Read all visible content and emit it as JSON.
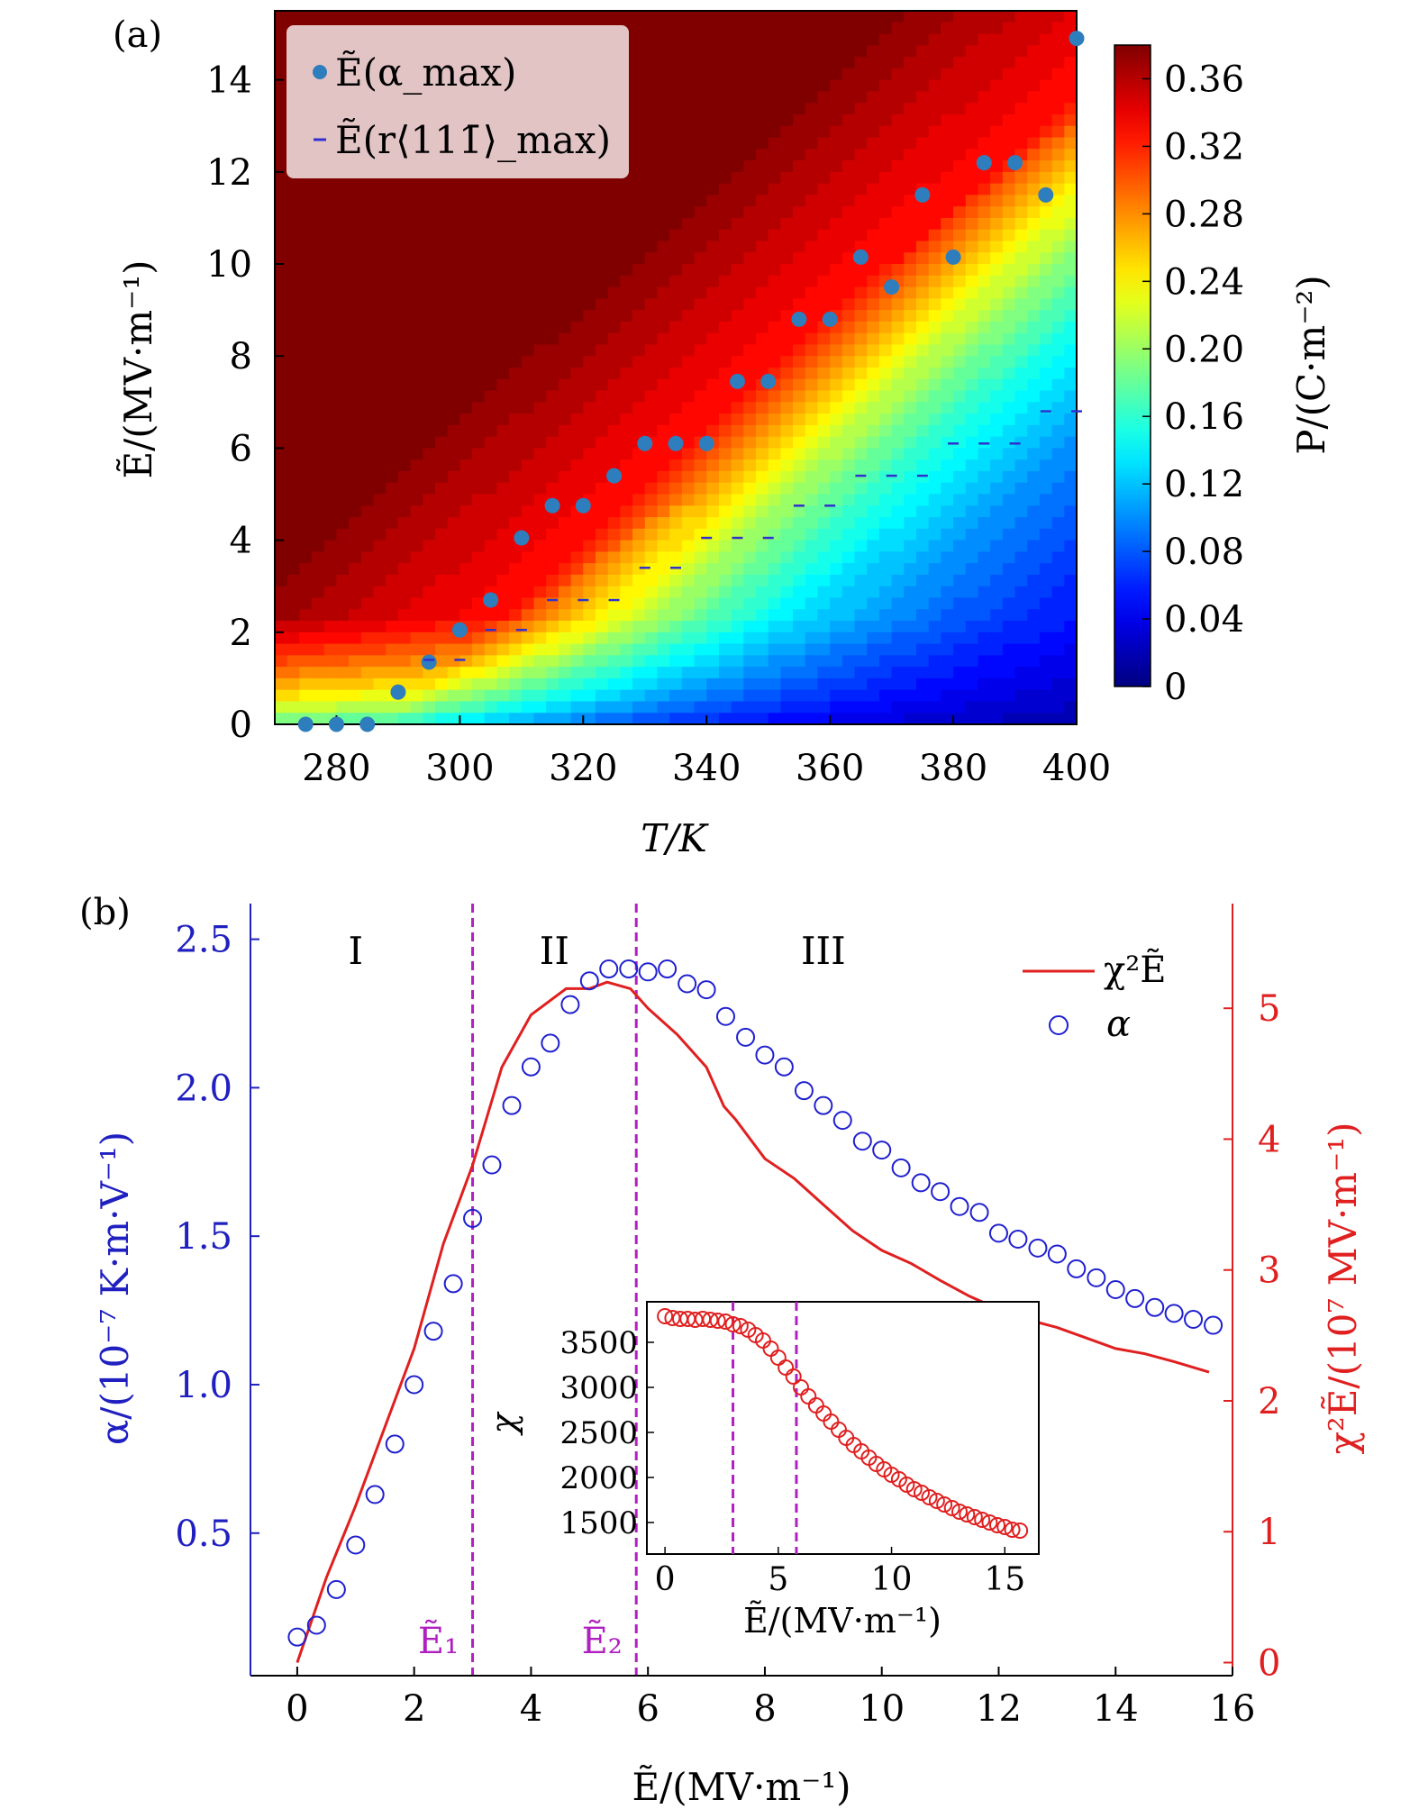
{
  "chart_data": [
    {
      "panel": "(a)",
      "type": "heatmap",
      "xlabel": "T/K",
      "ylabel": "Ẽ/(MV·m⁻¹)",
      "colorbar_label": "P/(C·m⁻²)",
      "xlim": [
        270,
        400
      ],
      "ylim": [
        0,
        15.5
      ],
      "xticks": [
        280,
        300,
        320,
        340,
        360,
        380,
        400
      ],
      "yticks": [
        0,
        2,
        4,
        6,
        8,
        10,
        12,
        14
      ],
      "colorbar_ticks": [
        "0",
        "0.04",
        "0.08",
        "0.12",
        "0.16",
        "0.20",
        "0.24",
        "0.28",
        "0.32",
        "0.36"
      ],
      "colorbar_range": [
        0,
        0.38
      ],
      "legend": [
        "Ẽ(α_max)",
        "Ẽ(r⟨111̄⟩_max)"
      ],
      "legend_position": "top-left",
      "series": [
        {
          "name": "Ẽ(α_max)",
          "kind": "scatter",
          "x": [
            275,
            280,
            285,
            290,
            295,
            300,
            305,
            310,
            315,
            320,
            325,
            330,
            335,
            340,
            345,
            350,
            355,
            360,
            365,
            370,
            375,
            380,
            385,
            390,
            395,
            400
          ],
          "y": [
            0,
            0,
            0,
            0.7,
            1.35,
            2.05,
            2.7,
            4.05,
            4.75,
            4.75,
            5.4,
            6.1,
            6.1,
            6.1,
            7.45,
            7.45,
            8.8,
            8.8,
            10.15,
            9.5,
            11.5,
            10.15,
            12.2,
            12.2,
            11.5,
            14.9
          ]
        },
        {
          "name": "Ẽ(r⟨111̄⟩_max)",
          "kind": "dash",
          "x": [
            295,
            300,
            305,
            310,
            315,
            320,
            325,
            330,
            335,
            340,
            345,
            350,
            355,
            360,
            365,
            370,
            375,
            380,
            385,
            390,
            395,
            400
          ],
          "y": [
            1.4,
            1.4,
            2.05,
            2.05,
            2.7,
            2.7,
            2.7,
            3.4,
            3.4,
            4.05,
            4.05,
            4.05,
            4.75,
            4.75,
            5.4,
            5.4,
            5.4,
            6.1,
            6.1,
            6.1,
            6.8,
            6.8
          ]
        }
      ]
    },
    {
      "panel": "(b)",
      "type": "scatter",
      "xlabel": "Ẽ/(MV·m⁻¹)",
      "ylabel_left": "α/(10⁻⁷ K·m·V⁻¹)",
      "ylabel_right": "χ²Ẽ/(10⁷ MV·m⁻¹)",
      "xlim": [
        -0.8,
        16
      ],
      "ylim_left": [
        0.02,
        2.62
      ],
      "ylim_right": [
        -0.1,
        5.8
      ],
      "xticks": [
        0,
        2,
        4,
        6,
        8,
        10,
        12,
        14,
        16
      ],
      "yticks_left": [
        "0.5",
        "1.0",
        "1.5",
        "2.0",
        "2.5"
      ],
      "yticks_right": [
        "0",
        "1",
        "2",
        "3",
        "4",
        "5"
      ],
      "regions": [
        "I",
        "II",
        "III"
      ],
      "vlines": [
        {
          "x": 3.0,
          "label": "Ẽ₁"
        },
        {
          "x": 5.8,
          "label": "Ẽ₂"
        }
      ],
      "legend": [
        "χ²Ẽ",
        "α"
      ],
      "legend_position": "top-right",
      "series": [
        {
          "name": "α",
          "axis": "left",
          "kind": "scatter",
          "x": [
            0,
            0.33,
            0.67,
            1.0,
            1.33,
            1.67,
            2.0,
            2.33,
            2.67,
            3.0,
            3.33,
            3.67,
            4.0,
            4.33,
            4.67,
            5.0,
            5.33,
            5.67,
            6.0,
            6.33,
            6.67,
            7.0,
            7.33,
            7.67,
            8.0,
            8.33,
            8.67,
            9.0,
            9.33,
            9.67,
            10.0,
            10.33,
            10.67,
            11.0,
            11.33,
            11.67,
            12.0,
            12.33,
            12.67,
            13.0,
            13.33,
            13.67,
            14.0,
            14.33,
            14.67,
            15.0,
            15.33,
            15.67
          ],
          "y": [
            0.15,
            0.19,
            0.31,
            0.46,
            0.63,
            0.8,
            1.0,
            1.18,
            1.34,
            1.56,
            1.74,
            1.94,
            2.07,
            2.15,
            2.28,
            2.36,
            2.4,
            2.4,
            2.39,
            2.4,
            2.35,
            2.33,
            2.24,
            2.17,
            2.11,
            2.07,
            1.99,
            1.94,
            1.89,
            1.82,
            1.79,
            1.73,
            1.68,
            1.65,
            1.6,
            1.58,
            1.51,
            1.49,
            1.46,
            1.44,
            1.39,
            1.36,
            1.32,
            1.29,
            1.26,
            1.24,
            1.22,
            1.2
          ]
        },
        {
          "name": "χ²Ẽ",
          "axis": "right",
          "kind": "line",
          "x": [
            0,
            0.5,
            1.0,
            1.5,
            2.0,
            2.5,
            3.0,
            3.5,
            4.0,
            4.3,
            4.6,
            5.0,
            5.3,
            5.7,
            6.0,
            6.5,
            7.0,
            7.3,
            7.5,
            8.0,
            8.5,
            9.0,
            9.5,
            10.0,
            10.5,
            11.0,
            11.5,
            12.0,
            12.5,
            13.0,
            13.5,
            14.0,
            14.5,
            15.0,
            15.6
          ],
          "y": [
            0,
            0.65,
            1.2,
            1.8,
            2.4,
            3.2,
            3.8,
            4.55,
            4.95,
            5.05,
            5.15,
            5.15,
            5.2,
            5.15,
            5.0,
            4.8,
            4.55,
            4.25,
            4.15,
            3.85,
            3.7,
            3.5,
            3.3,
            3.15,
            3.05,
            2.92,
            2.8,
            2.7,
            2.62,
            2.56,
            2.48,
            2.4,
            2.36,
            2.3,
            2.22
          ]
        }
      ],
      "inset": {
        "type": "scatter",
        "xlabel": "Ẽ/(MV·m⁻¹)",
        "ylabel": "χ",
        "xlim": [
          -0.8,
          16.5
        ],
        "ylim": [
          1150,
          3950
        ],
        "xticks": [
          0,
          5,
          10,
          15
        ],
        "yticks": [
          1500,
          2000,
          2500,
          3000,
          3500
        ],
        "vlines": [
          3.0,
          5.8
        ],
        "series": [
          {
            "name": "χ",
            "x": [
              0,
              0.33,
              0.67,
              1.0,
              1.33,
              1.67,
              2.0,
              2.33,
              2.67,
              3.0,
              3.33,
              3.67,
              4.0,
              4.33,
              4.67,
              5.0,
              5.33,
              5.67,
              6.0,
              6.33,
              6.67,
              7.0,
              7.33,
              7.67,
              8.0,
              8.33,
              8.67,
              9.0,
              9.33,
              9.67,
              10.0,
              10.33,
              10.67,
              11.0,
              11.33,
              11.67,
              12.0,
              12.33,
              12.67,
              13.0,
              13.33,
              13.67,
              14.0,
              14.33,
              14.67,
              15.0,
              15.33,
              15.67
            ],
            "y": [
              3790,
              3770,
              3760,
              3760,
              3750,
              3760,
              3750,
              3740,
              3730,
              3700,
              3680,
              3640,
              3580,
              3520,
              3430,
              3330,
              3220,
              3120,
              3000,
              2900,
              2800,
              2710,
              2620,
              2530,
              2440,
              2360,
              2290,
              2220,
              2150,
              2090,
              2030,
              1980,
              1920,
              1870,
              1830,
              1780,
              1740,
              1700,
              1660,
              1620,
              1590,
              1560,
              1530,
              1500,
              1470,
              1450,
              1420,
              1410
            ]
          }
        ]
      }
    }
  ]
}
